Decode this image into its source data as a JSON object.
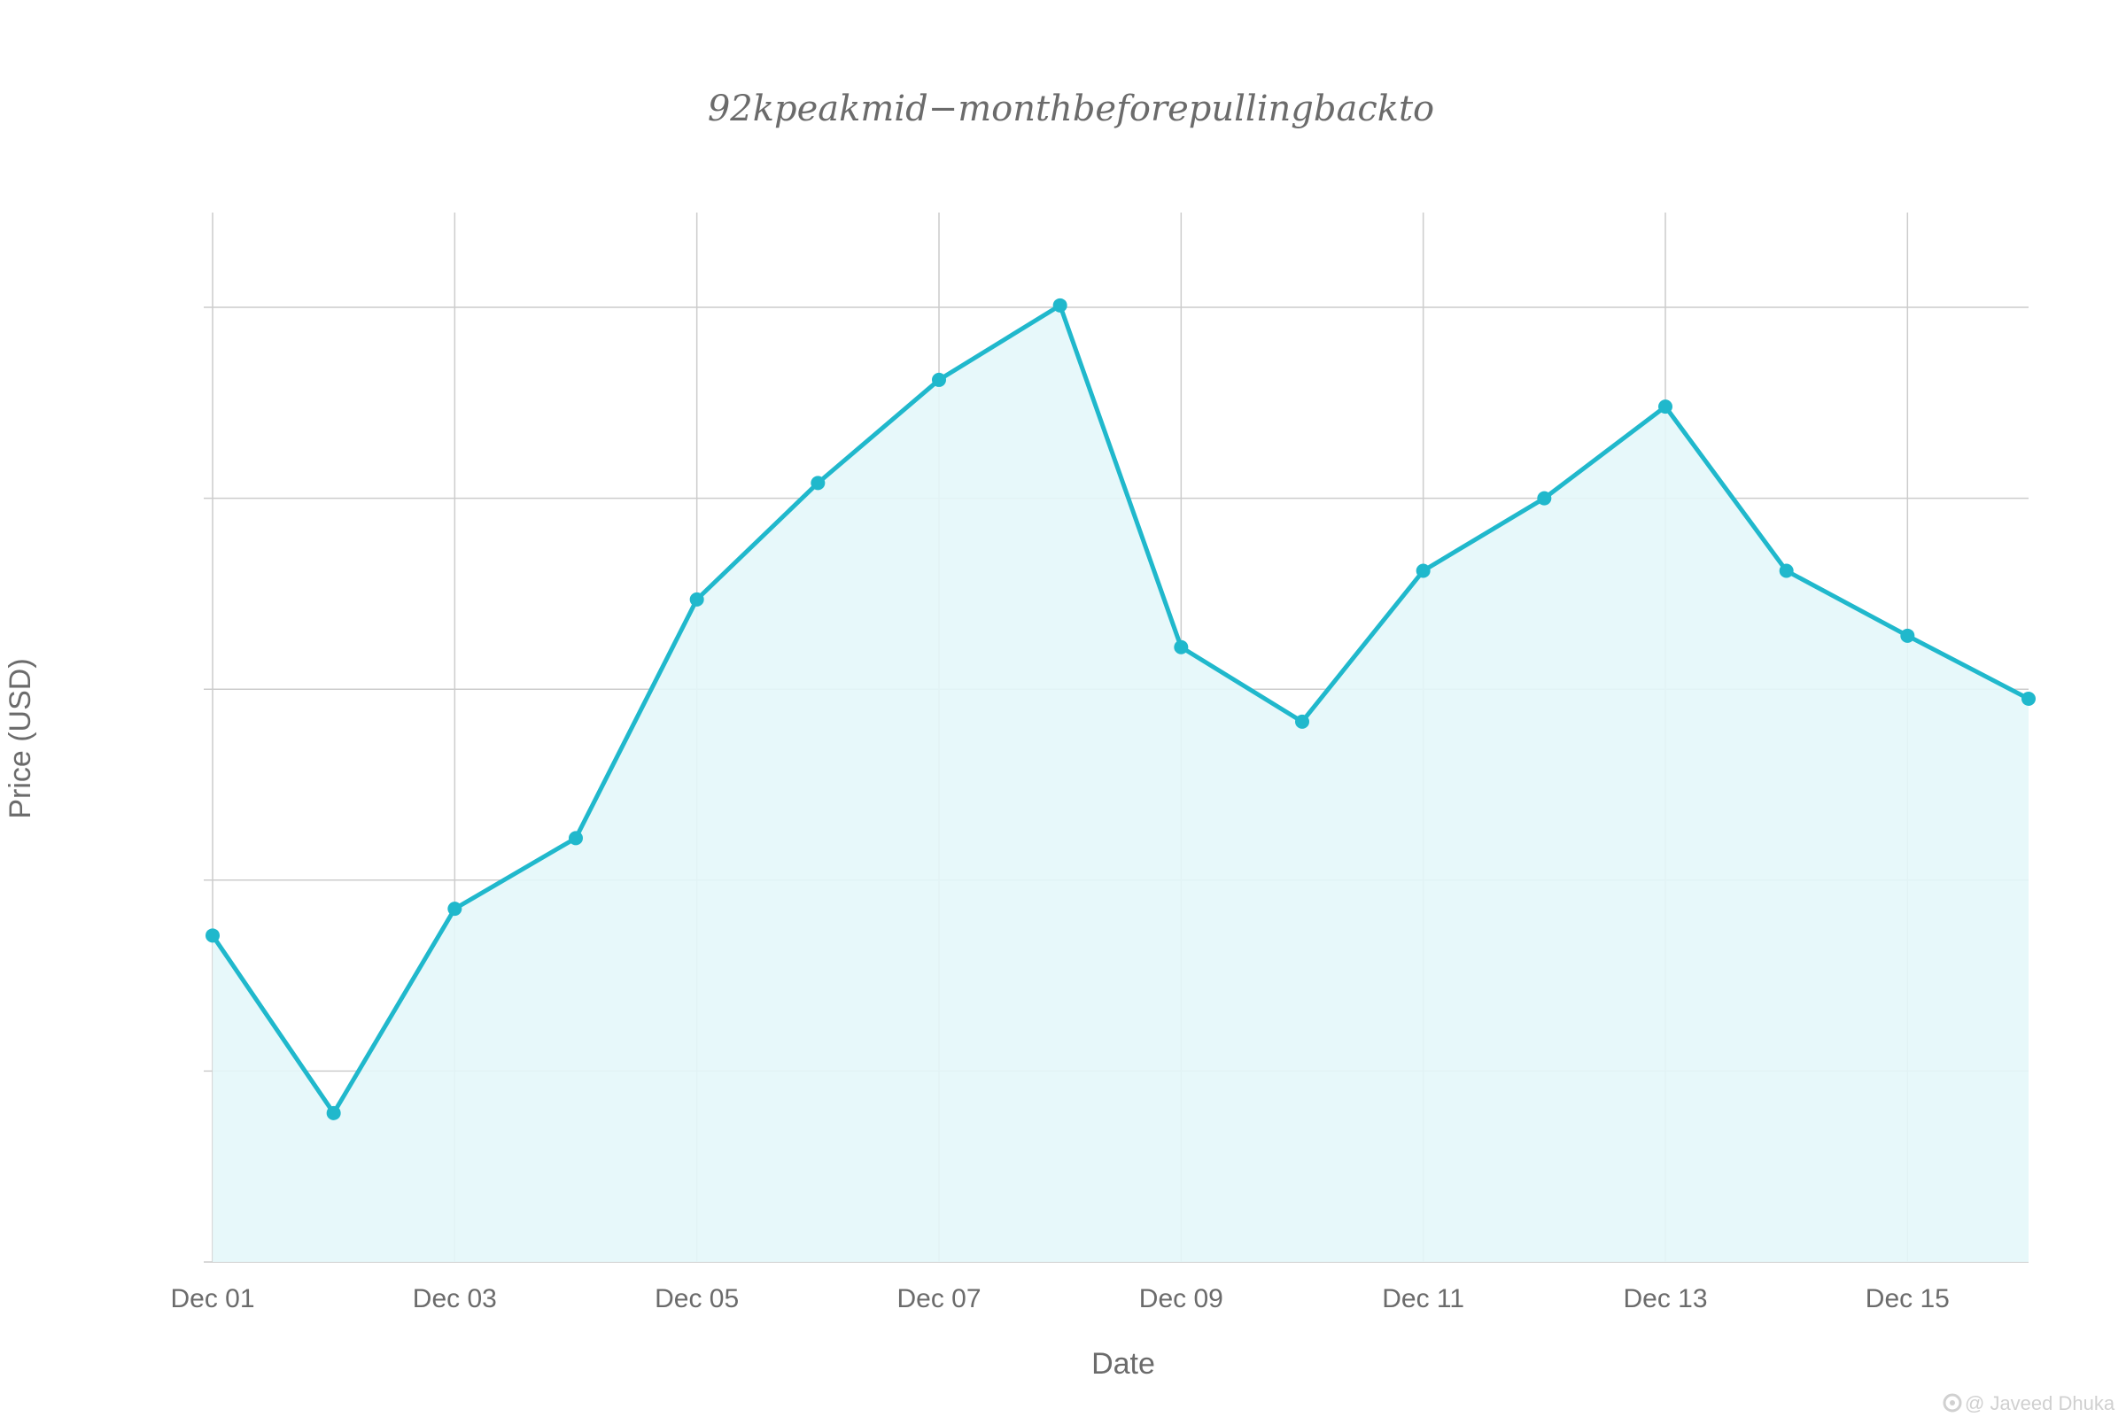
{
  "chart_data": {
    "type": "area",
    "title": "92kpeakmid−monthbeforepullingbackto",
    "xlabel": "Date",
    "ylabel": "Price (USD)",
    "x": [
      "Dec 01",
      "Dec 02",
      "Dec 03",
      "Dec 04",
      "Dec 05",
      "Dec 06",
      "Dec 07",
      "Dec 08",
      "Dec 09",
      "Dec 10",
      "Dec 11",
      "Dec 12",
      "Dec 13",
      "Dec 14",
      "Dec 15",
      "Dec 16"
    ],
    "x_ticks": [
      "Dec 01",
      "Dec 03",
      "Dec 05",
      "Dec 07",
      "Dec 09",
      "Dec 11",
      "Dec 13",
      "Dec 15"
    ],
    "series": [
      {
        "values": [
          1.71,
          0.78,
          1.85,
          2.22,
          3.47,
          4.08,
          4.62,
          5.01,
          3.22,
          2.83,
          3.62,
          4.0,
          4.48,
          3.62,
          3.28,
          2.95
        ]
      }
    ],
    "ylim": [
      0,
      5
    ],
    "y_ticks_count": 6,
    "grid": true,
    "y_tick_labels_visible": false,
    "colors": {
      "line": "#20b8cc",
      "fill": "#e4f7fa",
      "grid": "#cccccc",
      "text": "#6b6b6b"
    }
  },
  "watermark": {
    "icon": "gear-logo-icon",
    "text": "@ Javeed Dhuka"
  }
}
